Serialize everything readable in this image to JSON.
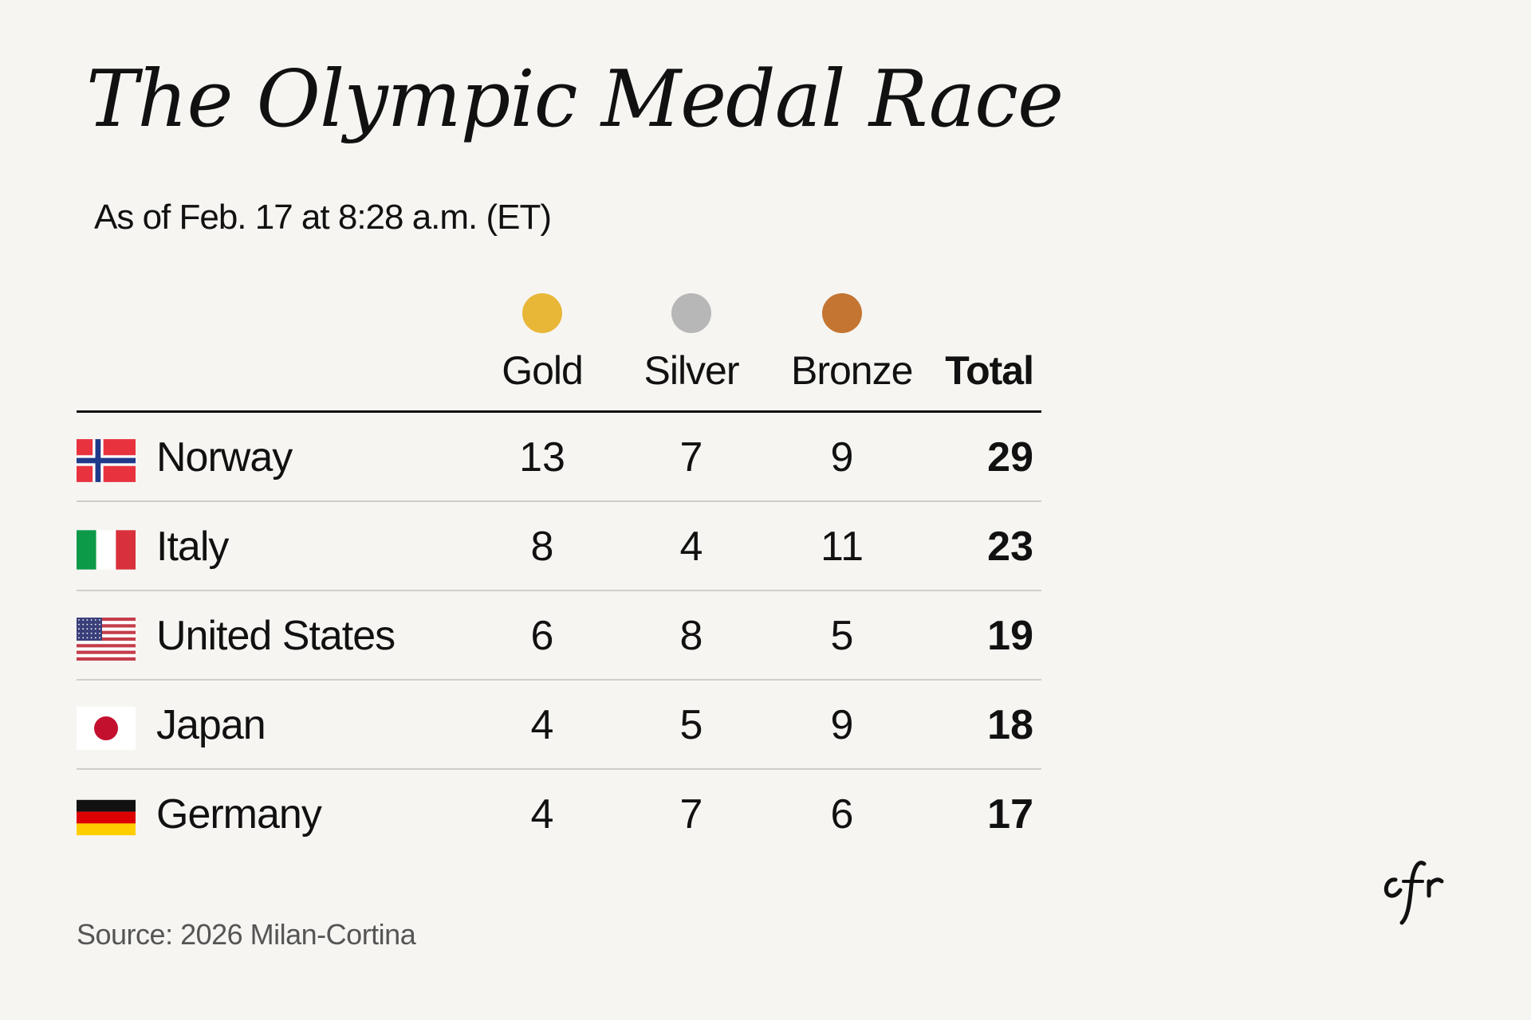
{
  "chart_data": {
    "type": "table",
    "title": "The Olympic Medal Race",
    "subtitle": "As of Feb. 17 at 8:28 a.m. (ET)",
    "columns": [
      {
        "label": "Gold",
        "color": "#e8b738"
      },
      {
        "label": "Silver",
        "color": "#b7b7b7"
      },
      {
        "label": "Bronze",
        "color": "#c47532"
      },
      {
        "label": "Total"
      }
    ],
    "rows": [
      {
        "country": "Norway",
        "flag": "norway-flag",
        "gold": 13,
        "silver": 7,
        "bronze": 9,
        "total": 29
      },
      {
        "country": "Italy",
        "flag": "italy-flag",
        "gold": 8,
        "silver": 4,
        "bronze": 11,
        "total": 23
      },
      {
        "country": "United States",
        "flag": "usa-flag",
        "gold": 6,
        "silver": 8,
        "bronze": 5,
        "total": 19
      },
      {
        "country": "Japan",
        "flag": "japan-flag",
        "gold": 4,
        "silver": 5,
        "bronze": 9,
        "total": 18
      },
      {
        "country": "Germany",
        "flag": "germany-flag",
        "gold": 4,
        "silver": 7,
        "bronze": 6,
        "total": 17
      }
    ],
    "source": "Source: 2026 Milan-Cortina"
  },
  "logo_text": "cfr"
}
